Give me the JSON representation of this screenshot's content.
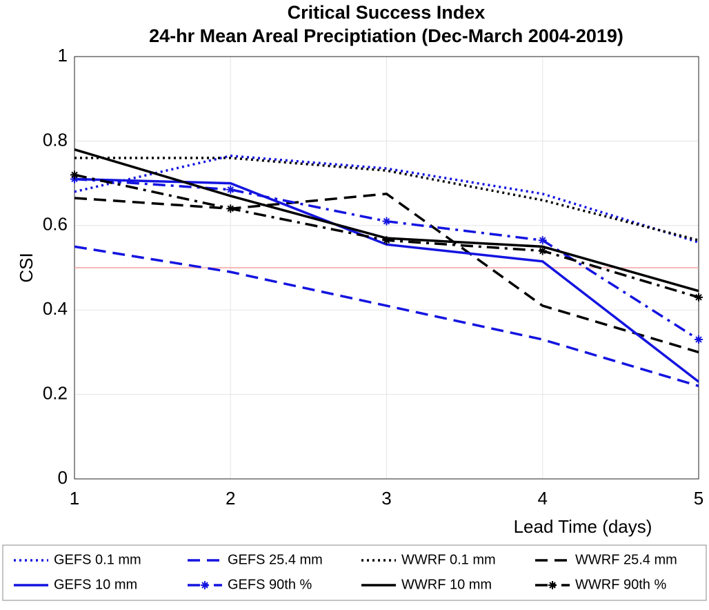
{
  "chart_data": {
    "type": "line",
    "title": "Critical Success Index",
    "subtitle": "24-hr Mean Areal Preciptiation (Dec-March 2004-2019)",
    "y_label": "CSI",
    "x_label": "Lead Time (days)",
    "x": [
      1,
      2,
      3,
      4,
      5
    ],
    "xlim": [
      1,
      5
    ],
    "xticks": [
      1,
      2,
      3,
      4,
      5
    ],
    "ylim": [
      0,
      1
    ],
    "yticks": [
      0,
      0.2,
      0.4,
      0.6,
      0.8,
      1
    ],
    "grid": true,
    "reference_line": 0.5,
    "reference_color": "#f4a0a0",
    "legend": "bottom",
    "series": [
      {
        "name": "GEFS 0.1 mm",
        "color": "#1414e0",
        "style": "dotted",
        "values": [
          0.68,
          0.765,
          0.735,
          0.675,
          0.56
        ]
      },
      {
        "name": "GEFS 25.4 mm",
        "color": "#1414e0",
        "style": "dashed",
        "values": [
          0.55,
          0.49,
          0.41,
          0.33,
          0.22
        ]
      },
      {
        "name": "WWRF 0.1 mm",
        "color": "#000000",
        "style": "dotted",
        "values": [
          0.76,
          0.76,
          0.73,
          0.66,
          0.565
        ]
      },
      {
        "name": "WWRF 25.4 mm",
        "color": "#000000",
        "style": "dashed",
        "values": [
          0.665,
          0.64,
          0.675,
          0.41,
          0.3
        ]
      },
      {
        "name": "GEFS 10 mm",
        "color": "#1414e0",
        "style": "solid",
        "values": [
          0.71,
          0.7,
          0.555,
          0.515,
          0.23
        ]
      },
      {
        "name": "GEFS 90th %",
        "color": "#1414e0",
        "style": "dashdot",
        "marker": "star",
        "values": [
          0.71,
          0.685,
          0.61,
          0.565,
          0.33
        ]
      },
      {
        "name": "WWRF 10 mm",
        "color": "#000000",
        "style": "solid",
        "values": [
          0.78,
          0.67,
          0.57,
          0.55,
          0.445
        ]
      },
      {
        "name": "WWRF 90th %",
        "color": "#000000",
        "style": "dashdot",
        "marker": "star",
        "values": [
          0.72,
          0.64,
          0.565,
          0.54,
          0.43
        ]
      }
    ]
  }
}
